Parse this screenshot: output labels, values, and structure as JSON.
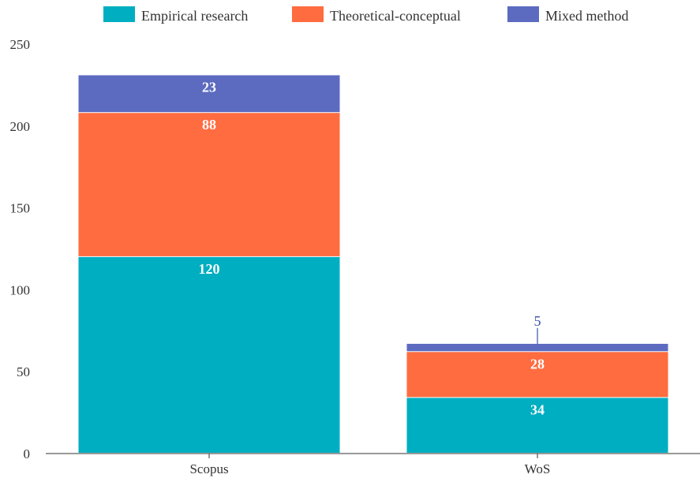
{
  "chart_data": {
    "type": "bar",
    "stacked": true,
    "categories": [
      "Scopus",
      "WoS"
    ],
    "series": [
      {
        "name": "Empirical research",
        "color": "#00aec1",
        "values": [
          120,
          34
        ]
      },
      {
        "name": "Theoretical-conceptual",
        "color": "#ff6c40",
        "values": [
          88,
          28
        ]
      },
      {
        "name": "Mixed method",
        "color": "#5c6bc0",
        "values": [
          23,
          5
        ]
      }
    ],
    "ylim": [
      0,
      250
    ],
    "yticks": [
      0,
      50,
      100,
      150,
      200,
      250
    ],
    "title": "",
    "xlabel": "",
    "ylabel": "",
    "legend_position": "top",
    "grid": false
  }
}
